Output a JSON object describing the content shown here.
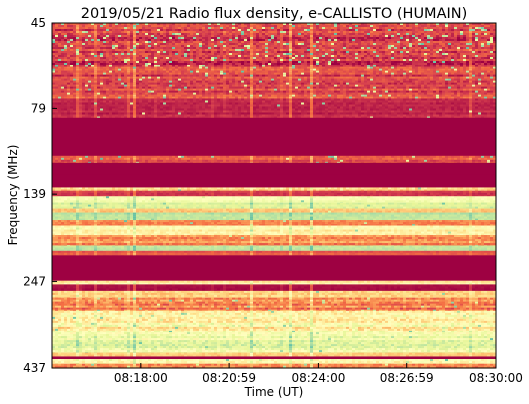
{
  "chart_data": {
    "type": "heatmap",
    "title": "2019/05/21  Radio flux density, e-CALLISTO (HUMAIN)",
    "xlabel": "Time (UT)",
    "ylabel": "Frequency (MHz)",
    "x_range": [
      "08:15:00",
      "08:30:00"
    ],
    "y_range_mhz": [
      45,
      437
    ],
    "y_axis_inverted": true,
    "y_scale": "log",
    "x_ticks": [
      "08:18:00",
      "08:20:59",
      "08:24:00",
      "08:26:59",
      "08:30:00"
    ],
    "y_ticks": [
      "45",
      "79",
      "139",
      "247",
      "437"
    ],
    "grid": false,
    "colormap": [
      "#9e0142",
      "#d53e4f",
      "#f46d43",
      "#fdae61",
      "#fee08b",
      "#ffffbf",
      "#e6f598",
      "#abdda4",
      "#66c2a5"
    ],
    "bands": [
      {
        "from_mhz": 45,
        "to_mhz": 60,
        "level": 0.12,
        "var": 0.16,
        "dots": 0.09
      },
      {
        "from_mhz": 60,
        "to_mhz": 74,
        "level": 0.16,
        "var": 0.14,
        "dots": 0.05
      },
      {
        "from_mhz": 74,
        "to_mhz": 84,
        "level": 0.08,
        "var": 0.06,
        "dots": 0.01
      },
      {
        "from_mhz": 84,
        "to_mhz": 108,
        "level": 0.0,
        "var": 0.0,
        "dots": 0
      },
      {
        "from_mhz": 108,
        "to_mhz": 113,
        "level": 0.18,
        "var": 0.1,
        "dots": 0.05
      },
      {
        "from_mhz": 113,
        "to_mhz": 122,
        "level": 0.0,
        "var": 0.0,
        "dots": 0
      },
      {
        "from_mhz": 122,
        "to_mhz": 133,
        "level": 0.0,
        "var": 0.0,
        "dots": 0
      },
      {
        "from_mhz": 133,
        "to_mhz": 136,
        "level": 0.45,
        "var": 0.15,
        "dots": 0.02
      },
      {
        "from_mhz": 136,
        "to_mhz": 141,
        "level": 0.12,
        "var": 0.06,
        "dots": 0
      },
      {
        "from_mhz": 141,
        "to_mhz": 147,
        "level": 0.66,
        "var": 0.1,
        "dots": 0.02
      },
      {
        "from_mhz": 147,
        "to_mhz": 153,
        "level": 0.74,
        "var": 0.08,
        "dots": 0.05
      },
      {
        "from_mhz": 153,
        "to_mhz": 157,
        "level": 0.4,
        "var": 0.1,
        "dots": 0.01
      },
      {
        "from_mhz": 157,
        "to_mhz": 165,
        "level": 0.82,
        "var": 0.07,
        "dots": 0.03
      },
      {
        "from_mhz": 165,
        "to_mhz": 171,
        "level": 0.26,
        "var": 0.1,
        "dots": 0.01
      },
      {
        "from_mhz": 171,
        "to_mhz": 182,
        "level": 0.58,
        "var": 0.12,
        "dots": 0.01
      },
      {
        "from_mhz": 182,
        "to_mhz": 195,
        "level": 0.32,
        "var": 0.14,
        "dots": 0.01
      },
      {
        "from_mhz": 195,
        "to_mhz": 202,
        "level": 0.84,
        "var": 0.06,
        "dots": 0
      },
      {
        "from_mhz": 202,
        "to_mhz": 208,
        "level": 0.2,
        "var": 0.06,
        "dots": 0
      },
      {
        "from_mhz": 208,
        "to_mhz": 246,
        "level": 0.0,
        "var": 0.0,
        "dots": 0
      },
      {
        "from_mhz": 246,
        "to_mhz": 252,
        "level": 0.55,
        "var": 0.1,
        "dots": 0
      },
      {
        "from_mhz": 252,
        "to_mhz": 263,
        "level": 0.03,
        "var": 0.03,
        "dots": 0
      },
      {
        "from_mhz": 263,
        "to_mhz": 275,
        "level": 0.45,
        "var": 0.14,
        "dots": 0.01
      },
      {
        "from_mhz": 275,
        "to_mhz": 300,
        "level": 0.3,
        "var": 0.2,
        "dots": 0.03
      },
      {
        "from_mhz": 300,
        "to_mhz": 345,
        "level": 0.58,
        "var": 0.2,
        "dots": 0.03
      },
      {
        "from_mhz": 345,
        "to_mhz": 395,
        "level": 0.72,
        "var": 0.15,
        "dots": 0.02
      },
      {
        "from_mhz": 395,
        "to_mhz": 405,
        "level": 0.42,
        "var": 0.1,
        "dots": 0
      },
      {
        "from_mhz": 405,
        "to_mhz": 412,
        "level": 0.0,
        "var": 0.0,
        "dots": 0
      },
      {
        "from_mhz": 412,
        "to_mhz": 425,
        "level": 0.65,
        "var": 0.15,
        "dots": 0.02
      },
      {
        "from_mhz": 425,
        "to_mhz": 437,
        "level": 0.35,
        "var": 0.15,
        "dots": 0.01
      }
    ]
  }
}
